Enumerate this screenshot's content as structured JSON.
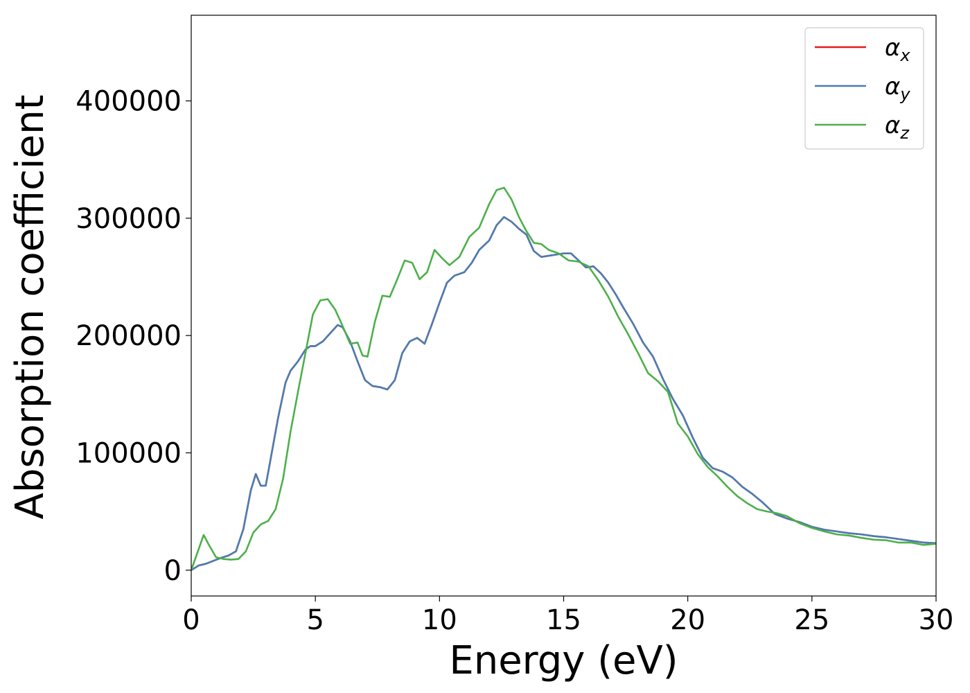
{
  "chart_data": {
    "type": "line",
    "xlabel": "Energy (eV)",
    "ylabel": "Absorption coefficient",
    "xlim": [
      0,
      30
    ],
    "ylim": [
      -22000,
      473000
    ],
    "xticks": [
      0,
      5,
      10,
      15,
      20,
      25,
      30
    ],
    "xtick_labels": [
      "0",
      "5",
      "10",
      "15",
      "20",
      "25",
      "30"
    ],
    "yticks": [
      0,
      100000,
      200000,
      300000,
      400000
    ],
    "ytick_labels": [
      "0",
      "100000",
      "200000",
      "300000",
      "400000"
    ],
    "grid": false,
    "legend_position": "top-right",
    "series": [
      {
        "name": "α",
        "subscript": "x",
        "color": "#e41a1c",
        "x": [
          0,
          0.3,
          0.6,
          0.9,
          1.2,
          1.5,
          1.8,
          2.1,
          2.4,
          2.6,
          2.8,
          3.0,
          3.2,
          3.5,
          3.8,
          4.0,
          4.3,
          4.6,
          4.8,
          5.0,
          5.3,
          5.6,
          5.9,
          6.1,
          6.4,
          6.7,
          7.0,
          7.3,
          7.6,
          7.9,
          8.2,
          8.5,
          8.8,
          9.1,
          9.4,
          9.7,
          10.0,
          10.3,
          10.6,
          11.0,
          11.3,
          11.6,
          12.0,
          12.3,
          12.6,
          12.9,
          13.2,
          13.5,
          13.8,
          14.1,
          14.4,
          14.7,
          15.0,
          15.3,
          15.6,
          15.9,
          16.2,
          16.5,
          16.8,
          17.1,
          17.4,
          17.8,
          18.2,
          18.6,
          19.0,
          19.4,
          19.8,
          20.2,
          20.6,
          21.0,
          21.4,
          21.8,
          22.2,
          22.6,
          23.0,
          23.5,
          24.0,
          24.5,
          25.0,
          25.5,
          26.0,
          26.5,
          27.0,
          27.5,
          28.0,
          28.5,
          29.0,
          29.5,
          30.0
        ],
        "y": [
          0,
          4000,
          5500,
          8000,
          10500,
          12500,
          16000,
          35000,
          68000,
          82000,
          72000,
          72000,
          95000,
          130000,
          160000,
          170000,
          178000,
          188000,
          191000,
          191000,
          195000,
          202000,
          209000,
          207000,
          195000,
          178000,
          162000,
          157000,
          156000,
          154000,
          162000,
          185000,
          195000,
          198000,
          193000,
          210000,
          228000,
          245000,
          251000,
          254000,
          262000,
          273000,
          281000,
          294000,
          301000,
          297000,
          291000,
          286000,
          272000,
          267000,
          268000,
          269000,
          270000,
          270000,
          264000,
          258000,
          259000,
          253000,
          245000,
          235000,
          224000,
          210000,
          194000,
          182000,
          163000,
          146000,
          132000,
          113000,
          96000,
          87000,
          84000,
          79000,
          71000,
          65000,
          58000,
          48000,
          44000,
          41000,
          37000,
          34500,
          33000,
          31500,
          30500,
          29000,
          28000,
          26500,
          25000,
          23500,
          23000
        ]
      },
      {
        "name": "α",
        "subscript": "y",
        "color": "#4a7db3",
        "x": [
          0,
          0.3,
          0.6,
          0.9,
          1.2,
          1.5,
          1.8,
          2.1,
          2.4,
          2.6,
          2.8,
          3.0,
          3.2,
          3.5,
          3.8,
          4.0,
          4.3,
          4.6,
          4.8,
          5.0,
          5.3,
          5.6,
          5.9,
          6.1,
          6.4,
          6.7,
          7.0,
          7.3,
          7.6,
          7.9,
          8.2,
          8.5,
          8.8,
          9.1,
          9.4,
          9.7,
          10.0,
          10.3,
          10.6,
          11.0,
          11.3,
          11.6,
          12.0,
          12.3,
          12.6,
          12.9,
          13.2,
          13.5,
          13.8,
          14.1,
          14.4,
          14.7,
          15.0,
          15.3,
          15.6,
          15.9,
          16.2,
          16.5,
          16.8,
          17.1,
          17.4,
          17.8,
          18.2,
          18.6,
          19.0,
          19.4,
          19.8,
          20.2,
          20.6,
          21.0,
          21.4,
          21.8,
          22.2,
          22.6,
          23.0,
          23.5,
          24.0,
          24.5,
          25.0,
          25.5,
          26.0,
          26.5,
          27.0,
          27.5,
          28.0,
          28.5,
          29.0,
          29.5,
          30.0
        ],
        "y": [
          0,
          4000,
          5500,
          8000,
          10500,
          12500,
          16000,
          35000,
          68000,
          82000,
          72000,
          72000,
          95000,
          130000,
          160000,
          170000,
          178000,
          188000,
          191000,
          191000,
          195000,
          202000,
          209000,
          207000,
          195000,
          178000,
          162000,
          157000,
          156000,
          154000,
          162000,
          185000,
          195000,
          198000,
          193000,
          210000,
          228000,
          245000,
          251000,
          254000,
          262000,
          273000,
          281000,
          294000,
          301000,
          297000,
          291000,
          286000,
          272000,
          267000,
          268000,
          269000,
          270000,
          270000,
          264000,
          258000,
          259000,
          253000,
          245000,
          235000,
          224000,
          210000,
          194000,
          182000,
          163000,
          146000,
          132000,
          113000,
          96000,
          87000,
          84000,
          79000,
          71000,
          65000,
          58000,
          48000,
          44000,
          41000,
          37000,
          34500,
          33000,
          31500,
          30500,
          29000,
          28000,
          26500,
          25000,
          23500,
          23000
        ]
      },
      {
        "name": "α",
        "subscript": "z",
        "color": "#4daf4a",
        "x": [
          0,
          0.2,
          0.5,
          0.7,
          1.0,
          1.3,
          1.6,
          1.9,
          2.2,
          2.5,
          2.8,
          3.1,
          3.4,
          3.7,
          4.0,
          4.3,
          4.6,
          4.9,
          5.2,
          5.5,
          5.8,
          6.1,
          6.4,
          6.7,
          6.9,
          7.1,
          7.4,
          7.7,
          8.0,
          8.3,
          8.6,
          8.9,
          9.2,
          9.5,
          9.8,
          10.1,
          10.4,
          10.8,
          11.2,
          11.6,
          12.0,
          12.3,
          12.6,
          12.9,
          13.2,
          13.5,
          13.8,
          14.1,
          14.4,
          14.8,
          15.2,
          15.6,
          16.0,
          16.4,
          16.8,
          17.2,
          17.6,
          18.0,
          18.4,
          18.8,
          19.2,
          19.6,
          20.0,
          20.4,
          20.8,
          21.2,
          21.6,
          22.0,
          22.4,
          22.8,
          23.2,
          23.6,
          24.0,
          24.5,
          25.0,
          25.5,
          26.0,
          26.5,
          27.0,
          27.5,
          28.0,
          28.5,
          29.0,
          29.5,
          30.0
        ],
        "y": [
          0,
          12000,
          30000,
          22000,
          11000,
          9500,
          9000,
          9500,
          16000,
          32000,
          39000,
          42000,
          52000,
          78000,
          118000,
          152000,
          185000,
          218000,
          230000,
          231000,
          222000,
          208000,
          193000,
          194000,
          183000,
          182000,
          212000,
          234000,
          233000,
          248000,
          264000,
          262000,
          248000,
          254000,
          273000,
          266000,
          260000,
          267000,
          284000,
          292000,
          312000,
          324000,
          326000,
          316000,
          301000,
          289000,
          279000,
          278000,
          273000,
          270000,
          264000,
          263000,
          259000,
          247000,
          233000,
          216000,
          201000,
          185000,
          168000,
          161000,
          152000,
          125000,
          114000,
          99000,
          88000,
          80000,
          71000,
          63000,
          57000,
          52000,
          50000,
          48500,
          46000,
          40000,
          36000,
          33000,
          30500,
          29500,
          27500,
          26000,
          25500,
          23500,
          23500,
          21500,
          22500
        ]
      }
    ]
  }
}
